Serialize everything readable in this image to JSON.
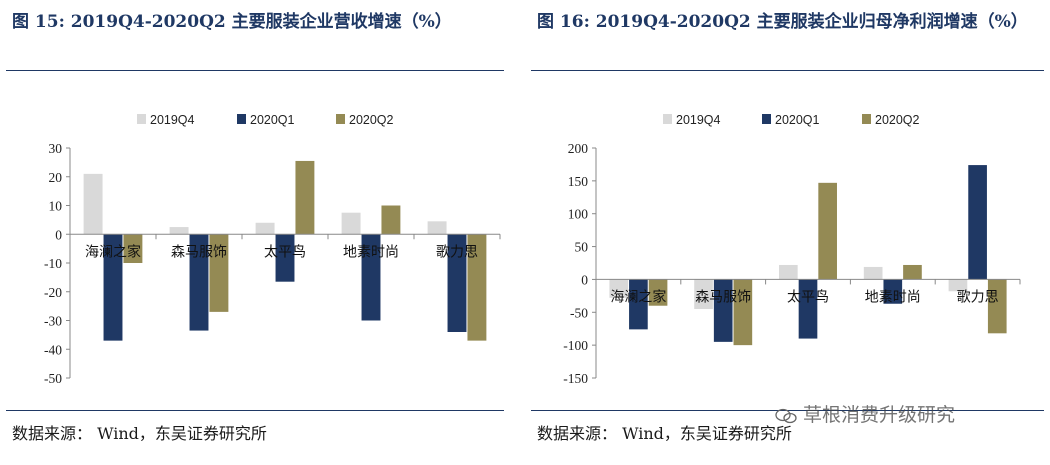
{
  "panels": [
    {
      "title": "图 15:  2019Q4-2020Q2 主要服装企业营收增速（%）",
      "source": "数据来源： Wind，东吴证券研究所"
    },
    {
      "title": "图  16:  2019Q4-2020Q2  主要服装企业归母净利润增速（%）",
      "source": "数据来源： Wind，东吴证券研究所"
    }
  ],
  "watermark": "草根消费升级研究",
  "colors": {
    "s2019Q4": "#d9d9d9",
    "s2020Q1": "#1f3864",
    "s2020Q2": "#948a54",
    "navy": "#1f3864"
  },
  "chart_data": [
    {
      "type": "bar",
      "title": "2019Q4-2020Q2 主要服装企业营收增速（%）",
      "categories": [
        "海澜之家",
        "森马服饰",
        "太平鸟",
        "地素时尚",
        "歌力思"
      ],
      "series": [
        {
          "name": "2019Q4",
          "values": [
            21,
            2.5,
            4,
            7.5,
            4.5
          ]
        },
        {
          "name": "2020Q1",
          "values": [
            -37,
            -33.5,
            -16.5,
            -30,
            -34
          ]
        },
        {
          "name": "2020Q2",
          "values": [
            -10,
            -27,
            25.5,
            10,
            -37
          ]
        }
      ],
      "ylim": [
        -50,
        30
      ],
      "yticks": [
        30,
        20,
        10,
        0,
        -10,
        -20,
        -30,
        -40,
        -50
      ],
      "legend": "top",
      "xlabel": "",
      "ylabel": ""
    },
    {
      "type": "bar",
      "title": "2019Q4-2020Q2 主要服装企业归母净利润增速（%）",
      "categories": [
        "海澜之家",
        "森马服饰",
        "太平鸟",
        "地素时尚",
        "歌力思"
      ],
      "series": [
        {
          "name": "2019Q4",
          "values": [
            -28,
            -45,
            22,
            19,
            -18
          ]
        },
        {
          "name": "2020Q1",
          "values": [
            -76,
            -95,
            -90,
            -37,
            174
          ]
        },
        {
          "name": "2020Q2",
          "values": [
            -40,
            -100,
            147,
            22,
            -82
          ]
        }
      ],
      "ylim": [
        -150,
        200
      ],
      "yticks": [
        200,
        150,
        100,
        50,
        0,
        -50,
        -100,
        -150
      ],
      "legend": "top",
      "xlabel": "",
      "ylabel": ""
    }
  ]
}
